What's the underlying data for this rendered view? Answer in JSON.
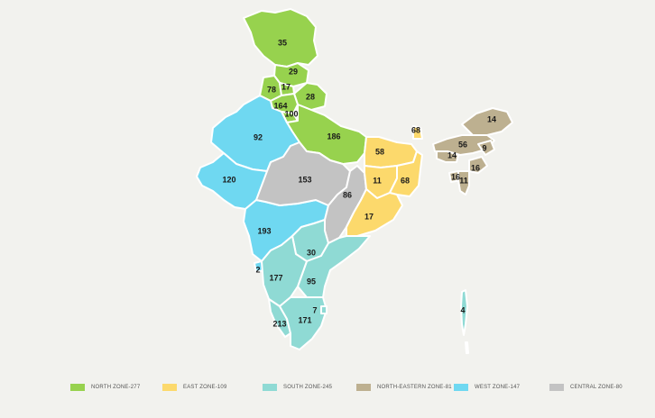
{
  "colors": {
    "north": "#97d24e",
    "east": "#fcd96c",
    "south": "#8fdad4",
    "north_eastern": "#bdb090",
    "west": "#6fd8f1",
    "central": "#c3c3c3"
  },
  "legend": [
    {
      "zone": "north",
      "label": "NORTH ZONE-277"
    },
    {
      "zone": "east",
      "label": "EAST ZONE-109"
    },
    {
      "zone": "south",
      "label": "SOUTH ZONE-245"
    },
    {
      "zone": "north_eastern",
      "label": "NORTH-EASTERN ZONE-81"
    },
    {
      "zone": "west",
      "label": "WEST ZONE-147"
    },
    {
      "zone": "central",
      "label": "CENTRAL ZONE-80"
    }
  ],
  "labels": [
    {
      "id": "jammu-kashmir",
      "zone": "north",
      "value": "35"
    },
    {
      "id": "himachal-pradesh",
      "zone": "north",
      "value": "29"
    },
    {
      "id": "punjab",
      "zone": "north",
      "value": "78"
    },
    {
      "id": "chandigarh",
      "zone": "north",
      "value": "17"
    },
    {
      "id": "uttarakhand",
      "zone": "north",
      "value": "28"
    },
    {
      "id": "haryana",
      "zone": "north",
      "value": "164"
    },
    {
      "id": "delhi",
      "zone": "north",
      "value": "100"
    },
    {
      "id": "uttar-pradesh",
      "zone": "north",
      "value": "186"
    },
    {
      "id": "rajasthan",
      "zone": "west",
      "value": "92"
    },
    {
      "id": "gujarat",
      "zone": "west",
      "value": "120"
    },
    {
      "id": "maharashtra",
      "zone": "west",
      "value": "193"
    },
    {
      "id": "goa",
      "zone": "west",
      "value": "2"
    },
    {
      "id": "madhya-pradesh",
      "zone": "central",
      "value": "153"
    },
    {
      "id": "chhattisgarh",
      "zone": "central",
      "value": "86"
    },
    {
      "id": "bihar",
      "zone": "east",
      "value": "58"
    },
    {
      "id": "jharkhand",
      "zone": "east",
      "value": "11"
    },
    {
      "id": "west-bengal",
      "zone": "east",
      "value": "68"
    },
    {
      "id": "sikkim",
      "zone": "east",
      "value": "68"
    },
    {
      "id": "odisha",
      "zone": "east",
      "value": "17"
    },
    {
      "id": "telangana",
      "zone": "south",
      "value": "30"
    },
    {
      "id": "andhra-pradesh",
      "zone": "south",
      "value": "95"
    },
    {
      "id": "karnataka",
      "zone": "south",
      "value": "177"
    },
    {
      "id": "tamil-nadu",
      "zone": "south",
      "value": "171"
    },
    {
      "id": "kerala",
      "zone": "south",
      "value": "213"
    },
    {
      "id": "puducherry",
      "zone": "south",
      "value": "7"
    },
    {
      "id": "arunachal-pradesh",
      "zone": "north_eastern",
      "value": "14"
    },
    {
      "id": "assam",
      "zone": "north_eastern",
      "value": "56"
    },
    {
      "id": "meghalaya",
      "zone": "north_eastern",
      "value": "14"
    },
    {
      "id": "nagaland",
      "zone": "north_eastern",
      "value": "9"
    },
    {
      "id": "manipur",
      "zone": "north_eastern",
      "value": "16"
    },
    {
      "id": "tripura",
      "zone": "north_eastern",
      "value": "16"
    },
    {
      "id": "mizoram",
      "zone": "north_eastern",
      "value": "11"
    },
    {
      "id": "andaman-nicobar",
      "zone": "south",
      "value": "4"
    }
  ]
}
